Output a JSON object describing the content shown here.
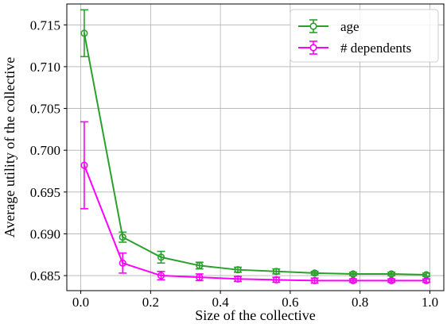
{
  "chart_data": {
    "type": "line",
    "xlabel": "Size of the collective",
    "ylabel": "Average utility of the collective",
    "xlim": [
      -0.04,
      1.04
    ],
    "ylim": [
      0.6832,
      0.7175
    ],
    "grid": true,
    "legend_position": "top-right",
    "x_ticks": [
      0.0,
      0.2,
      0.4,
      0.6,
      0.8,
      1.0
    ],
    "x_tick_labels": [
      "0.0",
      "0.2",
      "0.4",
      "0.6",
      "0.8",
      "1.0"
    ],
    "y_ticks": [
      0.685,
      0.69,
      0.695,
      0.7,
      0.705,
      0.71,
      0.715
    ],
    "y_tick_labels": [
      "0.685",
      "0.690",
      "0.695",
      "0.700",
      "0.705",
      "0.710",
      "0.715"
    ],
    "x": [
      0.01,
      0.12,
      0.23,
      0.34,
      0.45,
      0.56,
      0.67,
      0.78,
      0.89,
      0.99
    ],
    "series": [
      {
        "name": "age",
        "color": "#2ca02c",
        "values": [
          0.714,
          0.6896,
          0.6872,
          0.6862,
          0.6857,
          0.6855,
          0.6853,
          0.6852,
          0.6852,
          0.6851
        ],
        "errors": [
          0.0028,
          0.0006,
          0.0007,
          0.0004,
          0.0003,
          0.0003,
          0.0002,
          0.0002,
          0.0002,
          0.0002
        ]
      },
      {
        "name": "# dependents",
        "color": "#ff00ff",
        "values": [
          0.6982,
          0.6865,
          0.685,
          0.6848,
          0.6846,
          0.6845,
          0.6844,
          0.6844,
          0.6844,
          0.6844
        ],
        "errors": [
          0.0052,
          0.0012,
          0.0005,
          0.0004,
          0.0003,
          0.0003,
          0.0003,
          0.0002,
          0.0002,
          0.0002
        ]
      }
    ]
  }
}
